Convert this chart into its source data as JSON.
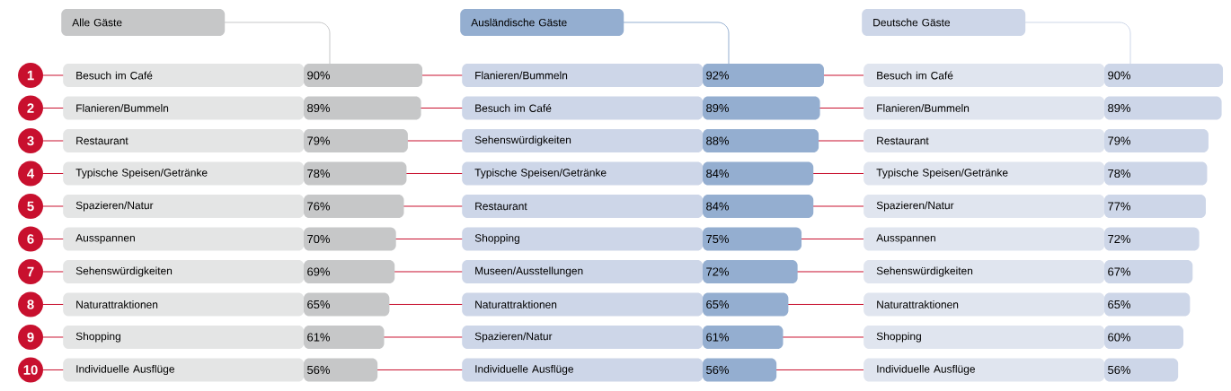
{
  "chart_data": [
    {
      "type": "bar",
      "orientation": "horizontal",
      "title": "Alle Gäste",
      "color": "#c6c7c8",
      "tick_labels": "y",
      "categories": [
        "Besuch im Café",
        "Flanieren/Bummeln",
        "Restaurant",
        "Typische Speisen/Getränke",
        "Spazieren/Natur",
        "Ausspannen",
        "Sehenswürdigkeiten",
        "Naturattraktionen",
        "Shopping",
        "Individuelle Ausflüge"
      ],
      "values": [
        90,
        89,
        79,
        78,
        76,
        70,
        69,
        65,
        61,
        56
      ],
      "value_labels": [
        "90%",
        "89%",
        "79%",
        "78%",
        "76%",
        "70%",
        "69%",
        "65%",
        "61%",
        "56%"
      ],
      "annotations": [
        "1",
        "2",
        "3",
        "4",
        "5",
        "6",
        "7",
        "8",
        "9",
        "10"
      ]
    },
    {
      "type": "bar",
      "orientation": "horizontal",
      "title": "Ausländische Gäste",
      "color": "#94aed0",
      "tick_labels": "y",
      "categories": [
        "Flanieren/Bummeln",
        "Besuch im Café",
        "Sehenswürdigkeiten",
        "Typische Speisen/Getränke",
        "Restaurant",
        "Shopping",
        "Museen/Ausstellungen",
        "Naturattraktionen",
        "Spazieren/Natur",
        "Individuelle Ausflüge"
      ],
      "values": [
        92,
        89,
        88,
        84,
        84,
        75,
        72,
        65,
        61,
        56
      ],
      "value_labels": [
        "92%",
        "89%",
        "88%",
        "84%",
        "84%",
        "75%",
        "72%",
        "65%",
        "61%",
        "56%"
      ]
    },
    {
      "type": "bar",
      "orientation": "horizontal",
      "title": "Deutsche Gäste",
      "color": "#cdd6e8",
      "tick_labels": "y",
      "categories": [
        "Besuch im Café",
        "Flanieren/Bummeln",
        "Restaurant",
        "Typische Speisen/Getränke",
        "Spazieren/Natur",
        "Ausspannen",
        "Sehenswürdigkeiten",
        "Naturattraktionen",
        "Shopping",
        "Individuelle Ausflüge"
      ],
      "values": [
        90,
        89,
        79,
        78,
        77,
        72,
        67,
        65,
        60,
        56
      ],
      "value_labels": [
        "90%",
        "89%",
        "79%",
        "78%",
        "77%",
        "72%",
        "67%",
        "65%",
        "60%",
        "56%"
      ]
    }
  ]
}
